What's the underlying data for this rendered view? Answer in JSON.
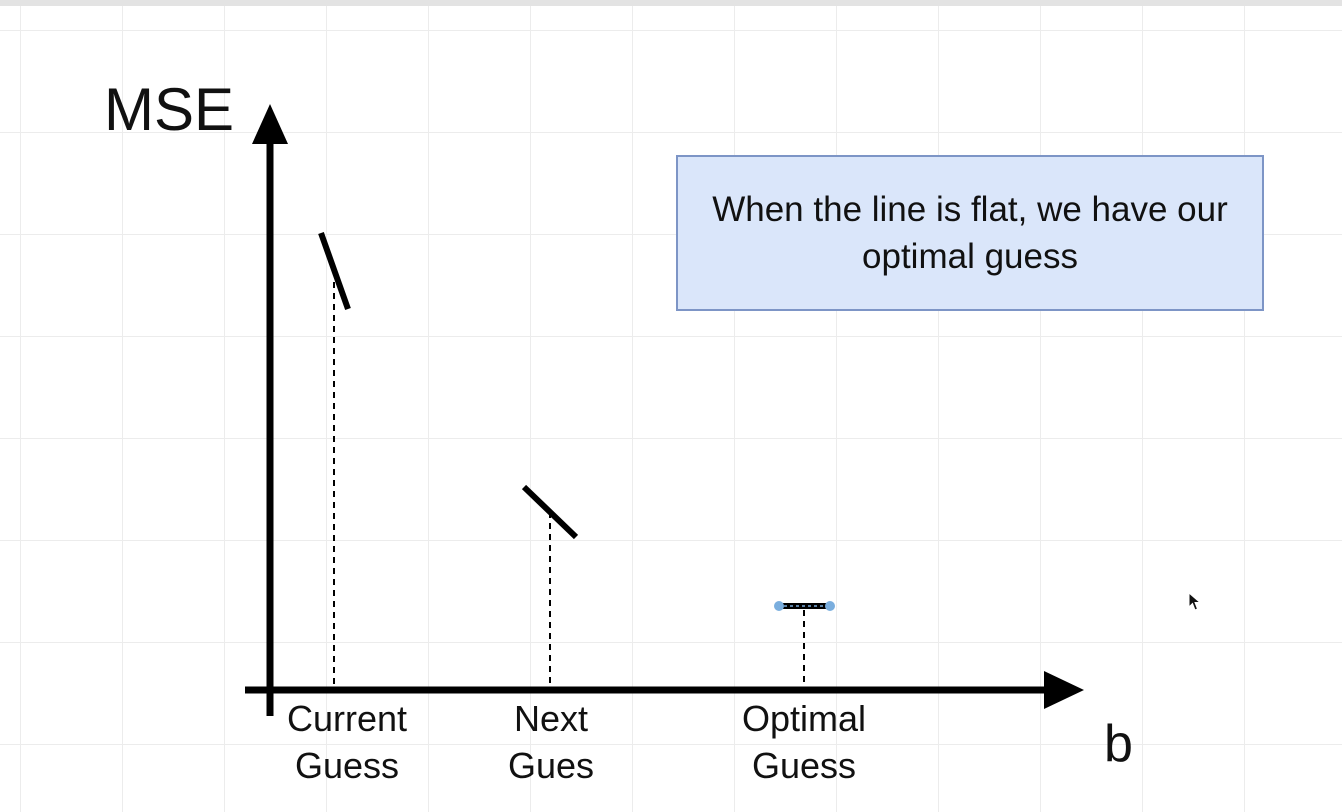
{
  "diagram": {
    "y_axis_label": "MSE",
    "x_axis_label": "b",
    "note": "When the line is flat, we have our optimal guess",
    "guesses": [
      {
        "id": "current",
        "label_line1": "Current",
        "label_line2": "Guess"
      },
      {
        "id": "next",
        "label_line1": "Next",
        "label_line2": "Gues"
      },
      {
        "id": "optimal",
        "label_line1": "Optimal",
        "label_line2": "Guess"
      }
    ],
    "colors": {
      "axis": "#000000",
      "note_fill": "#dae6fa",
      "note_border": "#7d95c6",
      "selection_handle": "#7aaede"
    },
    "icons": {
      "cursor": "mouse-pointer-icon"
    }
  }
}
